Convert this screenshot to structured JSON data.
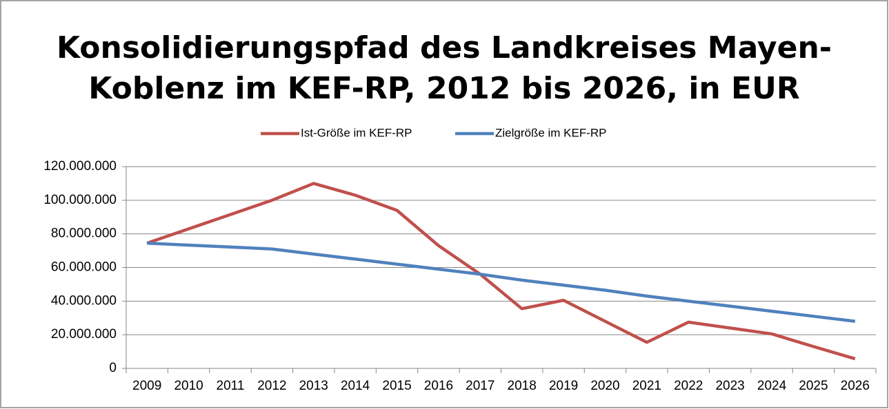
{
  "chart_data": {
    "type": "line",
    "title": [
      "Konsolidierungspfad des Landkreises Mayen-",
      "Koblenz im KEF-RP, 2012 bis 2026, in EUR"
    ],
    "categories": [
      "2009",
      "2010",
      "2011",
      "2012",
      "2013",
      "2014",
      "2015",
      "2016",
      "2017",
      "2018",
      "2019",
      "2020",
      "2021",
      "2022",
      "2023",
      "2024",
      "2025",
      "2026"
    ],
    "series": [
      {
        "name": "Ist-Größe im KEF-RP",
        "color": "#c0504d",
        "values": [
          74500000,
          83000000,
          91500000,
          100000000,
          110000000,
          103000000,
          94000000,
          73000000,
          56000000,
          35500000,
          40500000,
          28000000,
          15500000,
          27500000,
          24000000,
          20500000,
          13000000,
          5700000
        ]
      },
      {
        "name": "Zielgröße im KEF-RP",
        "color": "#4f81bd",
        "values": [
          74500000,
          73300000,
          72200000,
          71000000,
          68000000,
          65000000,
          62000000,
          59000000,
          56000000,
          52500000,
          49500000,
          46500000,
          43000000,
          40000000,
          37000000,
          34000000,
          31000000,
          28000000
        ]
      }
    ],
    "ylim": [
      0,
      120000000
    ],
    "yticks": [
      0,
      {
        "value": 20000000,
        "label": "20.000.000"
      },
      {
        "value": 40000000,
        "label": "40.000.000"
      },
      {
        "value": 60000000,
        "label": "60.000.000"
      },
      {
        "value": 80000000,
        "label": "80.000.000"
      },
      {
        "value": 100000000,
        "label": "100.000.000"
      },
      {
        "value": 120000000,
        "label": "120.000.000"
      }
    ],
    "grid": true,
    "legend": "top"
  }
}
